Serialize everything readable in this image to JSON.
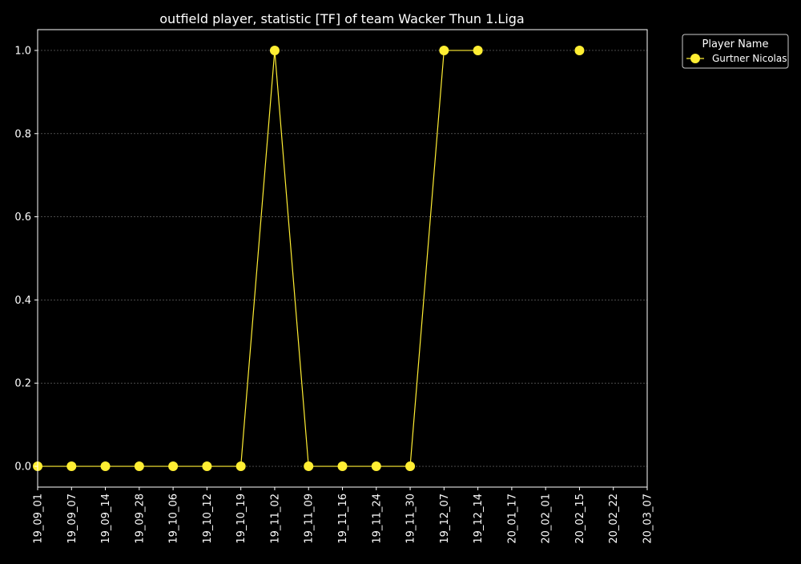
{
  "chart_data": {
    "type": "line",
    "title": "outfield player, statistic [TF] of team Wacker Thun 1.Liga",
    "xlabel": "",
    "ylabel": "",
    "categories": [
      "19_09_01",
      "19_09_07",
      "19_09_14",
      "19_09_28",
      "19_10_06",
      "19_10_12",
      "19_10_19",
      "19_11_02",
      "19_11_09",
      "19_11_16",
      "19_11_24",
      "19_11_30",
      "19_12_07",
      "19_12_14",
      "20_01_17",
      "20_02_01",
      "20_02_15",
      "20_02_22",
      "20_03_07"
    ],
    "series": [
      {
        "name": "Gurtner Nicolas",
        "color": "#ffee33",
        "values": [
          0,
          0,
          0,
          0,
          0,
          0,
          0,
          1,
          0,
          0,
          0,
          0,
          1,
          1,
          null,
          null,
          1,
          null,
          null
        ]
      }
    ],
    "yticks": [
      "0.0",
      "0.2",
      "0.4",
      "0.6",
      "0.8",
      "1.0"
    ],
    "ylim": [
      -0.05,
      1.05
    ],
    "grid": true,
    "legend": {
      "title": "Player Name",
      "placement": "outside-top-right"
    },
    "colors": {
      "background": "#000000",
      "axes": "#ffffff",
      "grid": "#777777"
    }
  }
}
